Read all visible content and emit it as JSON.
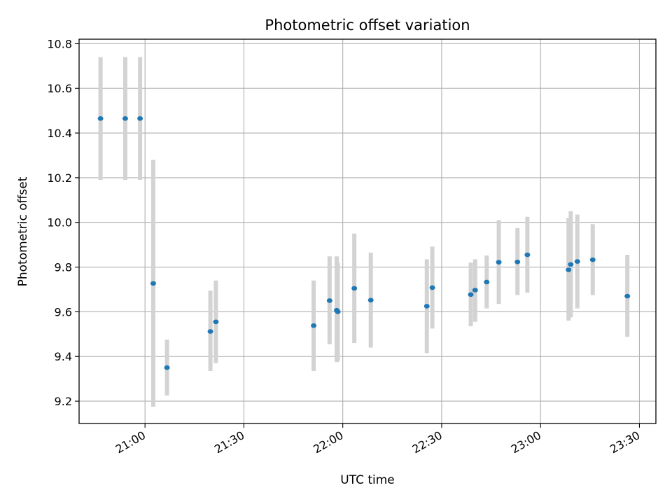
{
  "chart_data": {
    "type": "scatter",
    "title": "Photometric offset variation",
    "xlabel": "UTC time",
    "ylabel": "Photometric offset",
    "xlim": [
      "20:40",
      "23:35"
    ],
    "ylim": [
      9.1,
      10.82
    ],
    "x_ticks": [
      "21:00",
      "21:30",
      "22:00",
      "22:30",
      "23:00",
      "23:30"
    ],
    "y_ticks": [
      9.2,
      9.4,
      9.6,
      9.8,
      10.0,
      10.2,
      10.4,
      10.6,
      10.8
    ],
    "y_tick_labels": [
      "9.2",
      "9.4",
      "9.6",
      "9.8",
      "10.0",
      "10.2",
      "10.4",
      "10.6",
      "10.8"
    ],
    "grid": true,
    "point_color": "#1f77b4",
    "errorbar_color": "#d3d3d3",
    "points": [
      {
        "t": "20:46:30",
        "y": 10.465,
        "lo": 10.19,
        "hi": 10.74
      },
      {
        "t": "20:54:00",
        "y": 10.465,
        "lo": 10.19,
        "hi": 10.74
      },
      {
        "t": "20:58:30",
        "y": 10.465,
        "lo": 10.19,
        "hi": 10.74
      },
      {
        "t": "21:02:30",
        "y": 9.727,
        "lo": 9.175,
        "hi": 10.28
      },
      {
        "t": "21:06:40",
        "y": 9.35,
        "lo": 9.225,
        "hi": 9.475
      },
      {
        "t": "21:19:50",
        "y": 9.512,
        "lo": 9.335,
        "hi": 9.695
      },
      {
        "t": "21:21:30",
        "y": 9.555,
        "lo": 9.37,
        "hi": 9.74
      },
      {
        "t": "21:51:10",
        "y": 9.538,
        "lo": 9.335,
        "hi": 9.74
      },
      {
        "t": "21:56:00",
        "y": 9.65,
        "lo": 9.455,
        "hi": 9.848
      },
      {
        "t": "21:58:10",
        "y": 9.607,
        "lo": 9.375,
        "hi": 9.848
      },
      {
        "t": "21:58:30",
        "y": 9.6,
        "lo": 9.38,
        "hi": 9.82
      },
      {
        "t": "22:03:30",
        "y": 9.705,
        "lo": 9.46,
        "hi": 9.95
      },
      {
        "t": "22:08:30",
        "y": 9.652,
        "lo": 9.44,
        "hi": 9.865
      },
      {
        "t": "22:25:30",
        "y": 9.625,
        "lo": 9.415,
        "hi": 9.835
      },
      {
        "t": "22:27:10",
        "y": 9.708,
        "lo": 9.525,
        "hi": 9.892
      },
      {
        "t": "22:38:50",
        "y": 9.677,
        "lo": 9.535,
        "hi": 9.82
      },
      {
        "t": "22:40:10",
        "y": 9.697,
        "lo": 9.555,
        "hi": 9.835
      },
      {
        "t": "22:43:40",
        "y": 9.733,
        "lo": 9.615,
        "hi": 9.852
      },
      {
        "t": "22:47:20",
        "y": 9.822,
        "lo": 9.635,
        "hi": 10.01
      },
      {
        "t": "22:53:00",
        "y": 9.823,
        "lo": 9.675,
        "hi": 9.975
      },
      {
        "t": "22:56:00",
        "y": 9.855,
        "lo": 9.685,
        "hi": 10.025
      },
      {
        "t": "23:08:30",
        "y": 9.788,
        "lo": 9.56,
        "hi": 10.02
      },
      {
        "t": "23:09:10",
        "y": 9.812,
        "lo": 9.575,
        "hi": 10.05
      },
      {
        "t": "23:11:10",
        "y": 9.825,
        "lo": 9.615,
        "hi": 10.035
      },
      {
        "t": "23:15:50",
        "y": 9.833,
        "lo": 9.675,
        "hi": 9.992
      },
      {
        "t": "23:26:20",
        "y": 9.67,
        "lo": 9.488,
        "hi": 9.855
      }
    ]
  }
}
